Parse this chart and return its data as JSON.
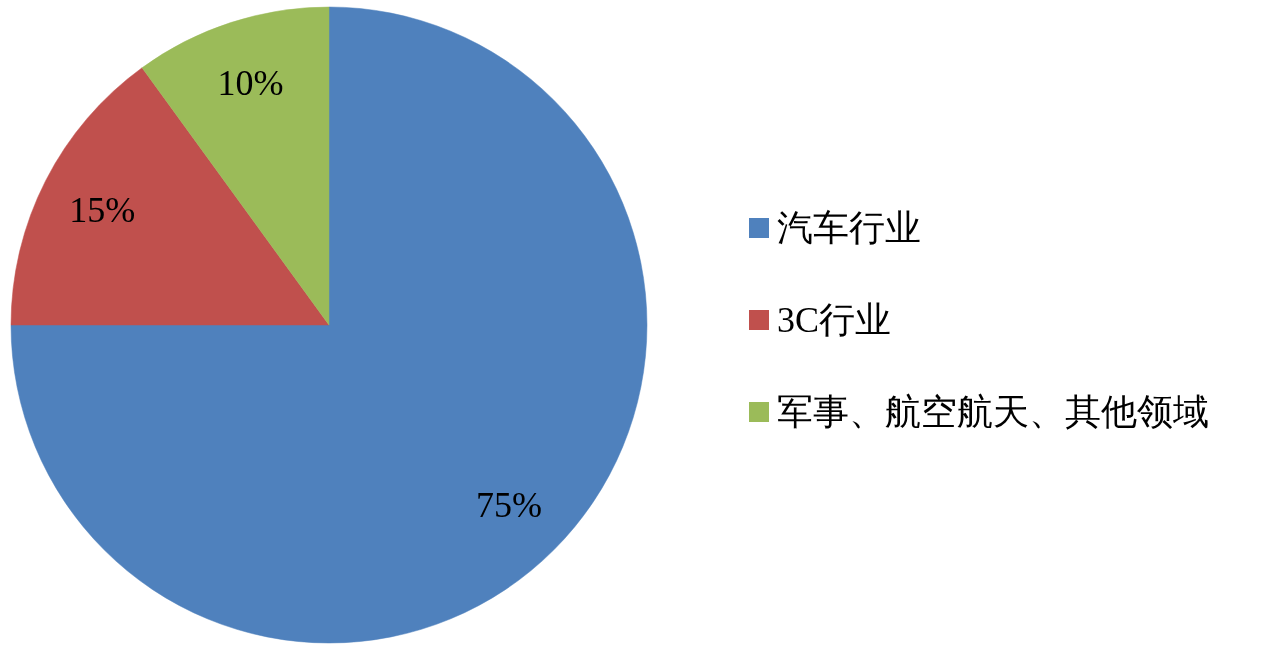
{
  "chart_data": {
    "type": "pie",
    "categories": [
      "汽车行业",
      "3C行业",
      "军事、航空航天、其他领域"
    ],
    "values": [
      75,
      15,
      10
    ],
    "colors": [
      "#4f81bd",
      "#c0504d",
      "#9bbb59"
    ],
    "value_labels": [
      "75%",
      "15%",
      "10%"
    ],
    "legend": "right"
  }
}
